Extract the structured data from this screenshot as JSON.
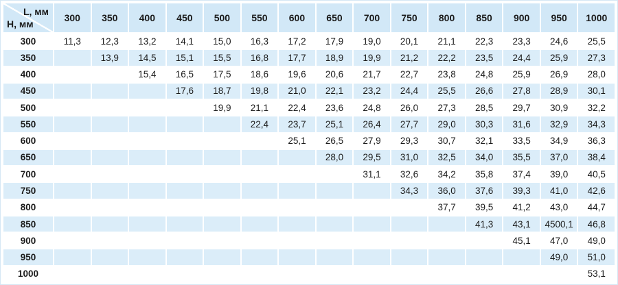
{
  "colors": {
    "header_bg": "#d2e8f7",
    "stripe_bg": "#dbedf9",
    "row_bg_white": "#ffffff",
    "cell_gap": "#ffffff",
    "outer_border": "#d5e7f4",
    "text": "#1b1b1b"
  },
  "chart_data": {
    "type": "table",
    "title": "",
    "corner": {
      "l_label": "L, мм",
      "h_label": "H, мм"
    },
    "columns": [
      "300",
      "350",
      "400",
      "450",
      "500",
      "550",
      "600",
      "650",
      "700",
      "750",
      "800",
      "850",
      "900",
      "950",
      "1000"
    ],
    "rows": [
      {
        "h": "300",
        "values": [
          "11,3",
          "12,3",
          "13,2",
          "14,1",
          "15,0",
          "16,3",
          "17,2",
          "17,9",
          "19,0",
          "20,1",
          "21,1",
          "22,3",
          "23,3",
          "24,6",
          "25,5"
        ]
      },
      {
        "h": "350",
        "values": [
          "",
          "13,9",
          "14,5",
          "15,1",
          "15,5",
          "16,8",
          "17,7",
          "18,9",
          "19,9",
          "21,2",
          "22,2",
          "23,5",
          "24,4",
          "25,9",
          "27,3"
        ]
      },
      {
        "h": "400",
        "values": [
          "",
          "",
          "15,4",
          "16,5",
          "17,5",
          "18,6",
          "19,6",
          "20,6",
          "21,7",
          "22,7",
          "23,8",
          "24,8",
          "25,9",
          "26,9",
          "28,0"
        ]
      },
      {
        "h": "450",
        "values": [
          "",
          "",
          "",
          "17,6",
          "18,7",
          "19,8",
          "21,0",
          "22,1",
          "23,2",
          "24,4",
          "25,5",
          "26,6",
          "27,8",
          "28,9",
          "30,1"
        ]
      },
      {
        "h": "500",
        "values": [
          "",
          "",
          "",
          "",
          "19,9",
          "21,1",
          "22,4",
          "23,6",
          "24,8",
          "26,0",
          "27,3",
          "28,5",
          "29,7",
          "30,9",
          "32,2"
        ]
      },
      {
        "h": "550",
        "values": [
          "",
          "",
          "",
          "",
          "",
          "22,4",
          "23,7",
          "25,1",
          "26,4",
          "27,7",
          "29,0",
          "30,3",
          "31,6",
          "32,9",
          "34,3"
        ]
      },
      {
        "h": "600",
        "values": [
          "",
          "",
          "",
          "",
          "",
          "",
          "25,1",
          "26,5",
          "27,9",
          "29,3",
          "30,7",
          "32,1",
          "33,5",
          "34,9",
          "36,3"
        ]
      },
      {
        "h": "650",
        "values": [
          "",
          "",
          "",
          "",
          "",
          "",
          "",
          "28,0",
          "29,5",
          "31,0",
          "32,5",
          "34,0",
          "35,5",
          "37,0",
          "38,4"
        ]
      },
      {
        "h": "700",
        "values": [
          "",
          "",
          "",
          "",
          "",
          "",
          "",
          "",
          "31,1",
          "32,6",
          "34,2",
          "35,8",
          "37,4",
          "39,0",
          "40,5"
        ]
      },
      {
        "h": "750",
        "values": [
          "",
          "",
          "",
          "",
          "",
          "",
          "",
          "",
          "",
          "34,3",
          "36,0",
          "37,6",
          "39,3",
          "41,0",
          "42,6"
        ]
      },
      {
        "h": "800",
        "values": [
          "",
          "",
          "",
          "",
          "",
          "",
          "",
          "",
          "",
          "",
          "37,7",
          "39,5",
          "41,2",
          "43,0",
          "44,7"
        ]
      },
      {
        "h": "850",
        "values": [
          "",
          "",
          "",
          "",
          "",
          "",
          "",
          "",
          "",
          "",
          "",
          "41,3",
          "43,1",
          "4500,1",
          "46,8"
        ]
      },
      {
        "h": "900",
        "values": [
          "",
          "",
          "",
          "",
          "",
          "",
          "",
          "",
          "",
          "",
          "",
          "",
          "45,1",
          "47,0",
          "49,0"
        ]
      },
      {
        "h": "950",
        "values": [
          "",
          "",
          "",
          "",
          "",
          "",
          "",
          "",
          "",
          "",
          "",
          "",
          "",
          "49,0",
          "51,0"
        ]
      },
      {
        "h": "1000",
        "values": [
          "",
          "",
          "",
          "",
          "",
          "",
          "",
          "",
          "",
          "",
          "",
          "",
          "",
          "",
          "53,1"
        ]
      }
    ]
  }
}
